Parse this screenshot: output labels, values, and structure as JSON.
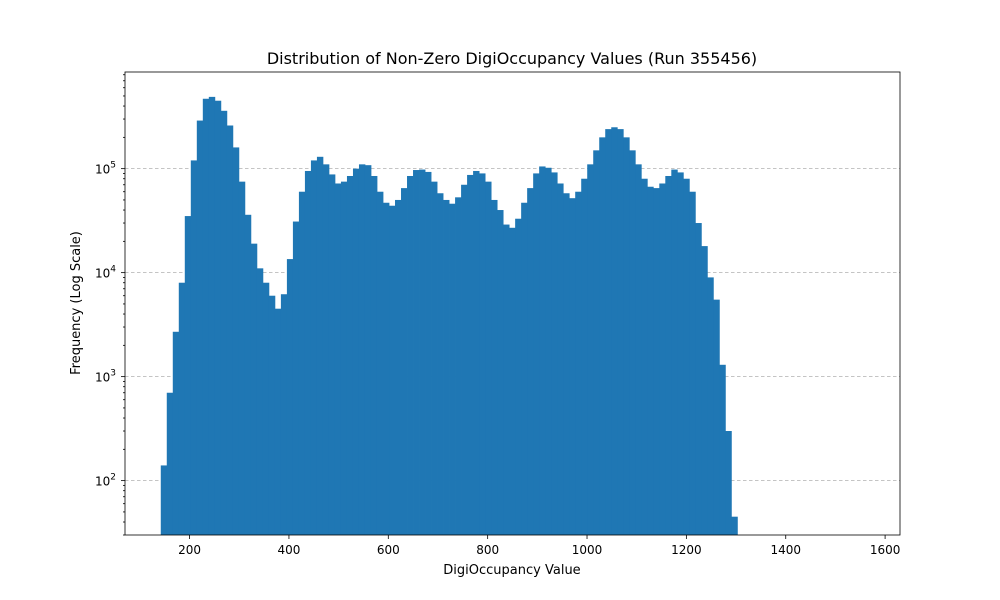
{
  "chart_data": {
    "type": "bar",
    "title": "Distribution of Non-Zero DigiOccupancy Values (Run 355456)",
    "xlabel": "DigiOccupancy Value",
    "ylabel": "Frequency (Log Scale)",
    "xlim": [
      70,
      1630
    ],
    "ylim": [
      30,
      850000
    ],
    "yscale": "log",
    "grid": "y-major-dashed",
    "bar_color": "#1f77b4",
    "x_ticks": [
      200,
      400,
      600,
      800,
      1000,
      1200,
      1400,
      1600
    ],
    "y_ticks": [
      {
        "value": 100,
        "base": "10",
        "exp": "2"
      },
      {
        "value": 1000,
        "base": "10",
        "exp": "3"
      },
      {
        "value": 10000,
        "base": "10",
        "exp": "4"
      },
      {
        "value": 100000,
        "base": "10",
        "exp": "5"
      }
    ],
    "bin_start": 142,
    "bin_width": 12.09,
    "values": [
      140,
      700,
      2700,
      8000,
      35000,
      120000,
      290000,
      470000,
      490000,
      450000,
      360000,
      260000,
      160000,
      75000,
      36000,
      19000,
      11000,
      8000,
      6000,
      4500,
      6200,
      13500,
      31000,
      60000,
      95000,
      120000,
      130000,
      110000,
      88000,
      72000,
      75000,
      85000,
      100000,
      110000,
      108000,
      85000,
      60000,
      47000,
      44000,
      50000,
      65000,
      85000,
      97000,
      98000,
      93000,
      75000,
      58000,
      50000,
      46000,
      53000,
      70000,
      87000,
      95000,
      90000,
      75000,
      50000,
      40000,
      29000,
      27000,
      33000,
      47000,
      65000,
      90000,
      105000,
      102000,
      92000,
      72000,
      58000,
      52000,
      60000,
      80000,
      110000,
      150000,
      200000,
      240000,
      250000,
      240000,
      200000,
      150000,
      110000,
      80000,
      67000,
      65000,
      72000,
      85000,
      98000,
      92000,
      80000,
      60000,
      30000,
      18000,
      9000,
      5500,
      1300,
      300,
      45
    ]
  }
}
